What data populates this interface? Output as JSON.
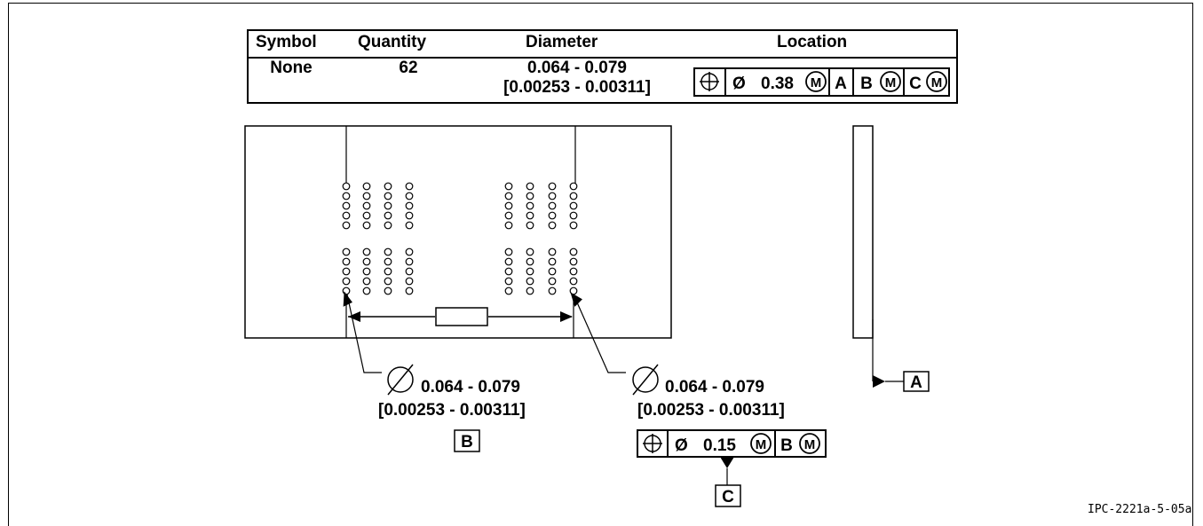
{
  "table": {
    "headers": [
      "Symbol",
      "Quantity",
      "Diameter",
      "Location"
    ],
    "row": {
      "symbol": "None",
      "quantity": "62",
      "diameter_line1": "0.064 - 0.079",
      "diameter_line2": "[0.00253 - 0.00311]"
    },
    "location_fcf": {
      "tolerance": "0.38",
      "datum_a": "A",
      "datum_b": "B",
      "datum_c": "C",
      "modifier": "M",
      "diameter_symbol": "Ø"
    }
  },
  "callouts": {
    "left": {
      "line1": "0.064 - 0.079",
      "line2": "[0.00253 - 0.00311]"
    },
    "right": {
      "line1": "0.064 - 0.079",
      "line2": "[0.00253 - 0.00311]"
    }
  },
  "datums": {
    "a": "A",
    "b": "B",
    "c": "C"
  },
  "bottom_fcf": {
    "tolerance": "0.15",
    "datum": "B",
    "modifier": "M",
    "diameter_symbol": "Ø"
  },
  "figure_ref": "IPC-2221a-5-05a"
}
